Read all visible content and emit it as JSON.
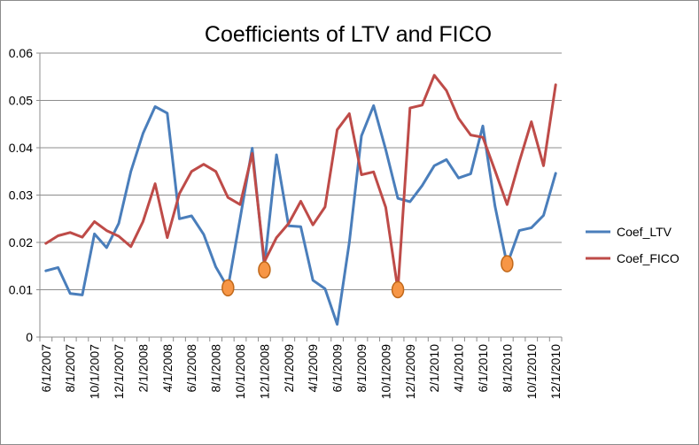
{
  "chart_data": {
    "type": "line",
    "title": "Coefficients of LTV and FICO",
    "xlabel": "",
    "ylabel": "",
    "ylim": [
      0,
      0.06
    ],
    "y_ticks": [
      "0",
      "0.01",
      "0.02",
      "0.03",
      "0.04",
      "0.05",
      "0.06"
    ],
    "grid": "horizontal",
    "legend_position": "right",
    "x": [
      "6/1/2007",
      "7/1/2007",
      "8/1/2007",
      "9/1/2007",
      "10/1/2007",
      "11/1/2007",
      "12/1/2007",
      "1/1/2008",
      "2/1/2008",
      "3/1/2008",
      "4/1/2008",
      "5/1/2008",
      "6/1/2008",
      "7/1/2008",
      "8/1/2008",
      "9/1/2008",
      "10/1/2008",
      "11/1/2008",
      "12/1/2008",
      "1/1/2009",
      "2/1/2009",
      "3/1/2009",
      "4/1/2009",
      "5/1/2009",
      "6/1/2009",
      "7/1/2009",
      "8/1/2009",
      "9/1/2009",
      "10/1/2009",
      "11/1/2009",
      "12/1/2009",
      "1/1/2010",
      "2/1/2010",
      "3/1/2010",
      "4/1/2010",
      "5/1/2010",
      "6/1/2010",
      "7/1/2010",
      "8/1/2010",
      "9/1/2010",
      "10/1/2010",
      "11/1/2010",
      "12/1/2010"
    ],
    "x_tick_labels": [
      "6/1/2007",
      "8/1/2007",
      "10/1/2007",
      "12/1/2007",
      "2/1/2008",
      "4/1/2008",
      "6/1/2008",
      "8/1/2008",
      "10/1/2008",
      "12/1/2008",
      "2/1/2009",
      "4/1/2009",
      "6/1/2009",
      "8/1/2009",
      "10/1/2009",
      "12/1/2009",
      "2/1/2010",
      "4/1/2010",
      "6/1/2010",
      "8/1/2010",
      "10/1/2010",
      "12/1/2010"
    ],
    "series": [
      {
        "name": "Coef_LTV",
        "color": "#4a7ebb",
        "values": [
          0.014,
          0.0147,
          0.0092,
          0.0089,
          0.0218,
          0.0189,
          0.024,
          0.035,
          0.043,
          0.0487,
          0.0473,
          0.025,
          0.0256,
          0.0217,
          0.0148,
          0.0104,
          0.025,
          0.0399,
          0.015,
          0.0385,
          0.0235,
          0.0233,
          0.012,
          0.0102,
          0.0027,
          0.02,
          0.0425,
          0.0489,
          0.0396,
          0.0293,
          0.0286,
          0.032,
          0.0362,
          0.0375,
          0.0336,
          0.0345,
          0.0446,
          0.0277,
          0.0153,
          0.0225,
          0.0231,
          0.0257,
          0.0346
        ]
      },
      {
        "name": "Coef_FICO",
        "color": "#be4b48",
        "values": [
          0.0198,
          0.0214,
          0.0221,
          0.0211,
          0.0244,
          0.0225,
          0.0213,
          0.0191,
          0.0244,
          0.0324,
          0.021,
          0.0303,
          0.035,
          0.0365,
          0.035,
          0.0295,
          0.028,
          0.0388,
          0.0159,
          0.021,
          0.024,
          0.0287,
          0.0237,
          0.0275,
          0.0438,
          0.0472,
          0.0343,
          0.0349,
          0.0274,
          0.01,
          0.0484,
          0.049,
          0.0553,
          0.0521,
          0.0462,
          0.0427,
          0.0422,
          0.0352,
          0.028,
          0.037,
          0.0455,
          0.0362,
          0.0533
        ]
      }
    ],
    "markers": {
      "color": "#f79646",
      "border": "#c0681a",
      "points": [
        {
          "x": "9/1/2008",
          "y": 0.0104
        },
        {
          "x": "12/1/2008",
          "y": 0.0142
        },
        {
          "x": "11/1/2009",
          "y": 0.01
        },
        {
          "x": "8/1/2010",
          "y": 0.0155
        }
      ]
    }
  }
}
